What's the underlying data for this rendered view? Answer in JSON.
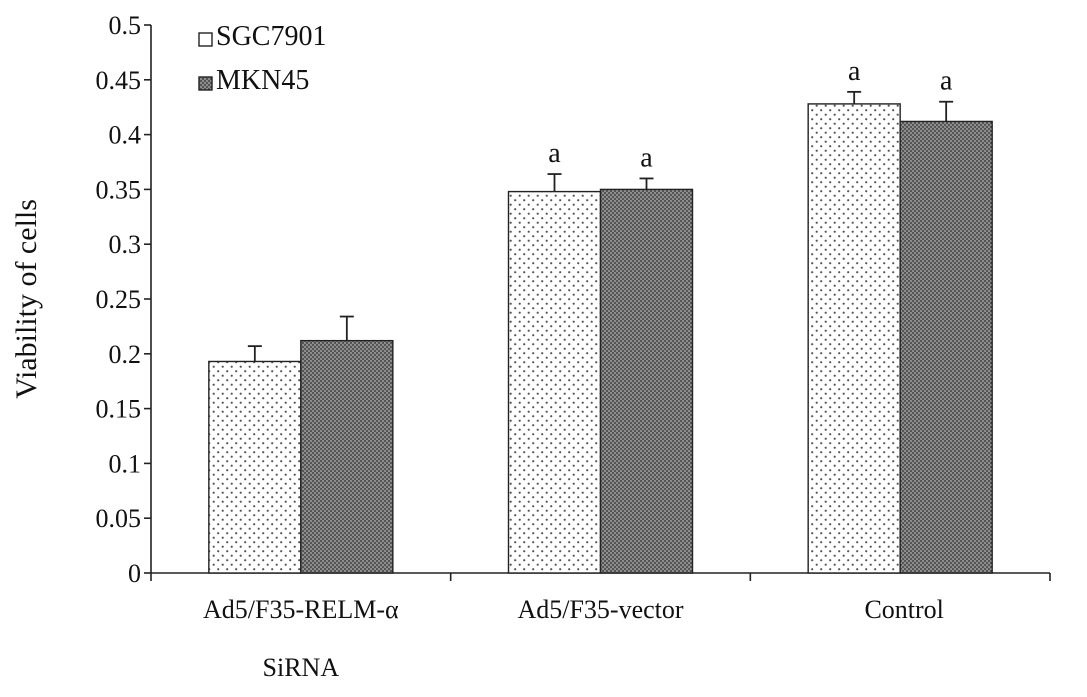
{
  "chart_data": {
    "type": "bar",
    "title": "",
    "xlabel": "",
    "ylabel": "Viability of cells",
    "ylim": [
      0,
      0.5
    ],
    "yticks": [
      "0",
      "0.05",
      "0.1",
      "0.15",
      "0.2",
      "0.25",
      "0.3",
      "0.35",
      "0.4",
      "0.45",
      "0.5"
    ],
    "categories": [
      {
        "line1": "Ad5/F35-RELM-α",
        "line2": "SiRNA"
      },
      {
        "line1": "Ad5/F35-vector",
        "line2": ""
      },
      {
        "line1": "Control",
        "line2": ""
      }
    ],
    "series": [
      {
        "name": "SGC7901",
        "pattern": "dots-light",
        "values": [
          0.193,
          0.348,
          0.428
        ],
        "errors": [
          0.014,
          0.016,
          0.011
        ],
        "labels": [
          "",
          "a",
          "a"
        ]
      },
      {
        "name": "MKN45",
        "pattern": "dots-dark",
        "values": [
          0.212,
          0.35,
          0.412
        ],
        "errors": [
          0.022,
          0.01,
          0.018
        ],
        "labels": [
          "",
          "a",
          "a"
        ]
      }
    ],
    "legend": {
      "position": "top-left"
    },
    "grid": false,
    "colors": {
      "axis": "#222222",
      "bar_outline": "#222222",
      "light_dot": "#555555",
      "dark_fill": "#6a6a6a"
    }
  }
}
